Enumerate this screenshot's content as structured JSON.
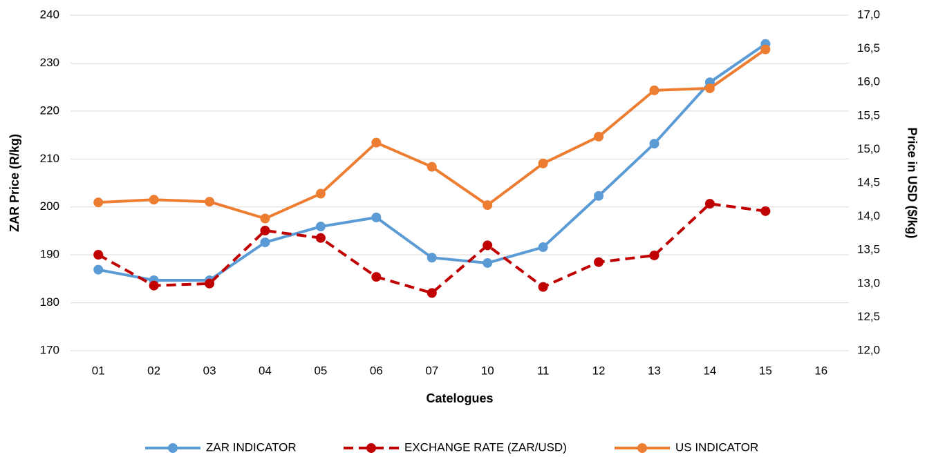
{
  "chart_data": {
    "type": "line",
    "x_label": "Catelogues",
    "y_label": "ZAR Price (R/kg)",
    "y2_label": "Price in USD ($/kg)",
    "categories": [
      "01",
      "02",
      "03",
      "04",
      "05",
      "06",
      "07",
      "10",
      "11",
      "12",
      "13",
      "14",
      "15",
      "16"
    ],
    "series": [
      {
        "name": "ZAR INDICATOR",
        "color": "#5b9bd5",
        "axis": "y",
        "dashed": false,
        "values": [
          186.9,
          184.7,
          184.7,
          192.6,
          195.9,
          197.8,
          189.4,
          188.3,
          191.6,
          202.3,
          213.2,
          226.0,
          234.0,
          null
        ]
      },
      {
        "name": "EXCHANGE RATE (ZAR/USD)",
        "color": "#c00000",
        "axis": "y2",
        "dashed": true,
        "values": [
          13.43,
          12.97,
          13.0,
          13.79,
          13.68,
          13.1,
          12.86,
          13.57,
          12.95,
          13.32,
          13.42,
          14.19,
          14.08,
          null
        ]
      },
      {
        "name": "US INDICATOR",
        "color": "#ed7d31",
        "axis": "y2",
        "dashed": false,
        "values": [
          14.21,
          14.25,
          14.22,
          13.97,
          14.34,
          15.1,
          14.74,
          14.17,
          14.79,
          15.19,
          15.88,
          15.91,
          16.49,
          null
        ]
      }
    ],
    "ylim": [
      170,
      240
    ],
    "yticks": [
      170,
      180,
      190,
      200,
      210,
      220,
      230,
      240
    ],
    "y2lim": [
      12,
      17
    ],
    "y2ticks": [
      {
        "value": 12,
        "label": "12,0"
      },
      {
        "value": 12.5,
        "label": "12,5"
      },
      {
        "value": 13,
        "label": "13,0"
      },
      {
        "value": 13.5,
        "label": "13,5"
      },
      {
        "value": 14,
        "label": "14,0"
      },
      {
        "value": 14.5,
        "label": "14,5"
      },
      {
        "value": 15,
        "label": "15,0"
      },
      {
        "value": 15.5,
        "label": "15,5"
      },
      {
        "value": 16,
        "label": "16,0"
      },
      {
        "value": 16.5,
        "label": "16,5"
      },
      {
        "value": 17,
        "label": "17,0"
      }
    ],
    "grid": true,
    "legend": "bottom"
  }
}
